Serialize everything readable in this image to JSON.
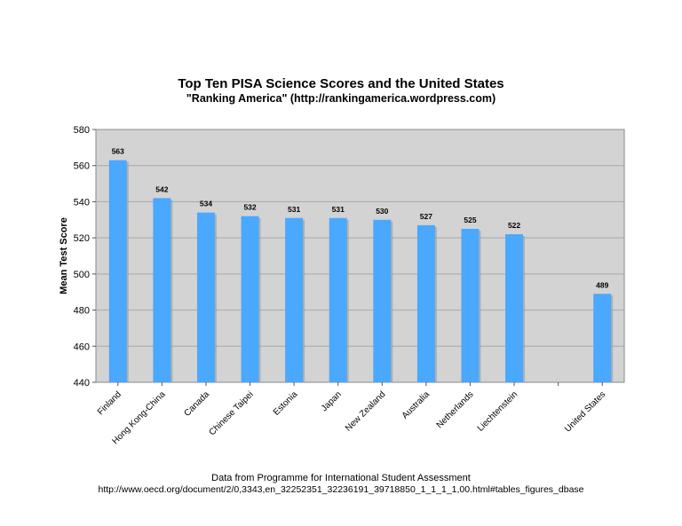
{
  "chart_data": {
    "type": "bar",
    "title": "Top Ten PISA Science Scores and the United States",
    "subtitle": "\"Ranking America\" (http://rankingamerica.wordpress.com)",
    "xlabel": "",
    "ylabel": "Mean Test Score",
    "ylim": [
      440,
      580
    ],
    "yticks": [
      440,
      460,
      480,
      500,
      520,
      540,
      560,
      580
    ],
    "grid": true,
    "legend": "none",
    "categories": [
      "Finland",
      "Hong Kong-China",
      "Canada",
      "Chinese Taipei",
      "Estonia",
      "Japan",
      "New Zealand",
      "Australia",
      "Netherlands",
      "Liechtenstein",
      "",
      "United States"
    ],
    "values": [
      563,
      542,
      534,
      532,
      531,
      531,
      530,
      527,
      525,
      522,
      null,
      489
    ],
    "colors": {
      "bar": "#4aa8ff",
      "plot_bg": "#d3d3d3",
      "grid": "#a8a8a8"
    }
  },
  "footer": {
    "line1": "Data from Programme for International Student Assessment",
    "line2": "http://www.oecd.org/document/2/0,3343,en_32252351_32236191_39718850_1_1_1_1,00.html#tables_figures_dbase"
  }
}
